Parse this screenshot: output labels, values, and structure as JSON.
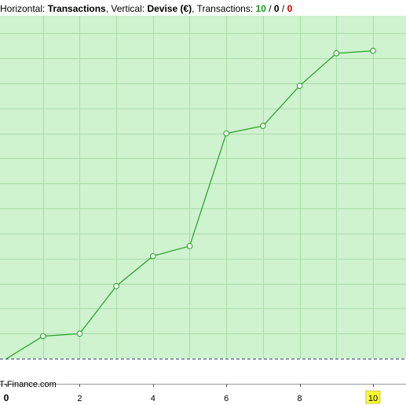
{
  "header": {
    "horizontal_label": "Horizontal:",
    "horizontal_value": "Transactions",
    "vertical_label": ", Vertical:",
    "vertical_value": "Devise (€)",
    "transactions_label": ", Transactions:",
    "count_green": "10",
    "sep1": " / ",
    "count_mid": "0",
    "sep2": " / ",
    "count_red": "0"
  },
  "watermark": "IT-Finance.com",
  "colors": {
    "plot_background": "#cff2cf",
    "grid": "#a8dca8",
    "line": "#22a022",
    "marker_fill": "#ffffff",
    "baseline": "#2a3a7a",
    "highlight_tick_bg": "#ffff33"
  },
  "chart_data": {
    "type": "line",
    "title": "",
    "xlabel": "Transactions",
    "ylabel": "Devise (€)",
    "x": [
      0,
      1,
      2,
      3,
      4,
      5,
      6,
      7,
      8,
      9,
      10
    ],
    "y": [
      0,
      9,
      10,
      29,
      41,
      45,
      90,
      93,
      109,
      122,
      123
    ],
    "xlim": [
      0,
      10.9
    ],
    "ylim": [
      -10,
      137
    ],
    "x_ticks": [
      "0",
      "2",
      "4",
      "6",
      "8",
      "10"
    ],
    "highlighted_tick": "10",
    "grid": true,
    "legend": "none"
  }
}
